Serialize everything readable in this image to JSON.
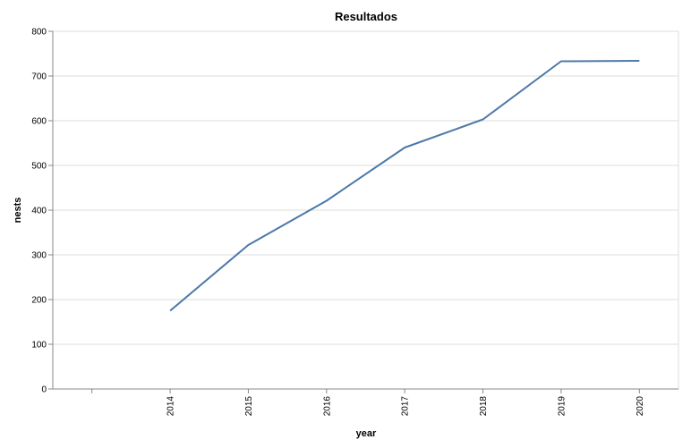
{
  "chart_data": {
    "type": "line",
    "title": "Resultados",
    "xlabel": "year",
    "ylabel": "nests",
    "x_categories": [
      "",
      "2014",
      "2015",
      "2016",
      "2017",
      "2018",
      "2019",
      "2020"
    ],
    "series": [
      {
        "x": [
          "2014",
          "2015",
          "2016",
          "2017",
          "2018",
          "2019",
          "2020"
        ],
        "values": [
          175,
          322,
          421,
          540,
          603,
          733,
          734
        ]
      }
    ],
    "ylim": [
      0,
      800
    ],
    "yticks": [
      0,
      100,
      200,
      300,
      400,
      500,
      600,
      700,
      800
    ],
    "grid": true,
    "colors": {
      "line": "#4c78a8",
      "grid": "#dddddd",
      "axis": "#888888"
    }
  }
}
